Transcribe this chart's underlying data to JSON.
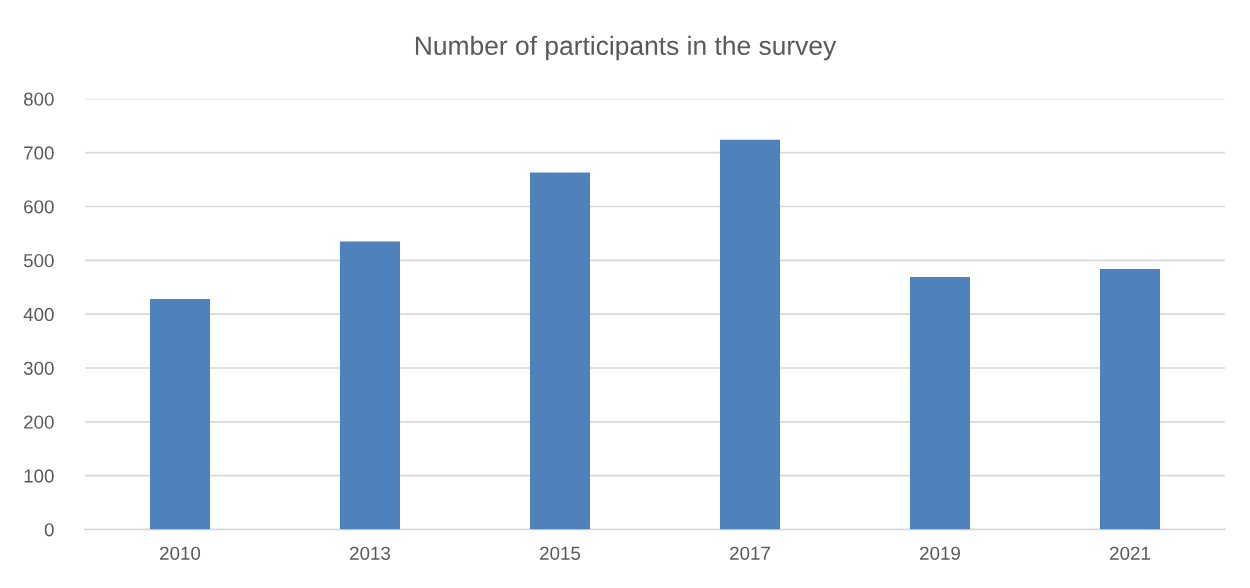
{
  "chart_data": {
    "type": "bar",
    "title": "Number of participants in the survey",
    "categories": [
      "2010",
      "2013",
      "2015",
      "2017",
      "2019",
      "2021"
    ],
    "values": [
      428,
      535,
      663,
      724,
      469,
      484
    ],
    "color": "#4f81bd",
    "ylim": [
      0,
      800
    ],
    "yticks": [
      0,
      100,
      200,
      300,
      400,
      500,
      600,
      700,
      800
    ],
    "grid": "y"
  }
}
